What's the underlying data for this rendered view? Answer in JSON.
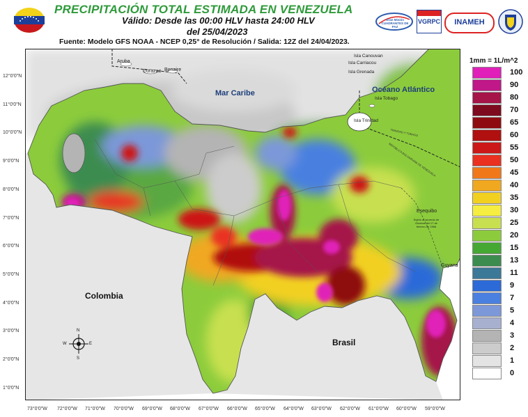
{
  "header": {
    "title": "PRECIPITACIÓN TOTAL ESTIMADA EN VENEZUELA",
    "validity": "Válido: Desde las 00:00 HLV hasta 24:00 HLV",
    "date": "del 25/04/2023",
    "source": "Fuente: Modelo GFS NOAA - NCEP 0,25° de Resolución / Salida: 12Z del 24/04/2023."
  },
  "logos": {
    "cuadrantes": "Gran Misión CUADRANTES DE PAZ",
    "vgrpc": "VGRPC",
    "inameh": "INAMEH"
  },
  "legend": {
    "title": "1mm = 1L/m^2",
    "items": [
      {
        "value": "100",
        "color": "#e020b8"
      },
      {
        "value": "90",
        "color": "#c01888"
      },
      {
        "value": "80",
        "color": "#a51548"
      },
      {
        "value": "70",
        "color": "#7e0a1e"
      },
      {
        "value": "65",
        "color": "#8e0c10"
      },
      {
        "value": "60",
        "color": "#b01010"
      },
      {
        "value": "55",
        "color": "#cc1818"
      },
      {
        "value": "50",
        "color": "#ea3020"
      },
      {
        "value": "45",
        "color": "#f07818"
      },
      {
        "value": "40",
        "color": "#f0a820"
      },
      {
        "value": "35",
        "color": "#f2d020"
      },
      {
        "value": "30",
        "color": "#f5ee40"
      },
      {
        "value": "25",
        "color": "#c8e050"
      },
      {
        "value": "20",
        "color": "#8ccc3c"
      },
      {
        "value": "15",
        "color": "#44a832"
      },
      {
        "value": "13",
        "color": "#3c8c50"
      },
      {
        "value": "11",
        "color": "#3c7898"
      },
      {
        "value": "9",
        "color": "#2c6ad8"
      },
      {
        "value": "7",
        "color": "#4a80e0"
      },
      {
        "value": "5",
        "color": "#7c98d8"
      },
      {
        "value": "4",
        "color": "#a8b0d0"
      },
      {
        "value": "3",
        "color": "#b4b4b4"
      },
      {
        "value": "2",
        "color": "#cccccc"
      },
      {
        "value": "1",
        "color": "#e4e4e4"
      },
      {
        "value": "0",
        "color": "#ffffff"
      }
    ]
  },
  "map_labels": {
    "aruba": "Aruba",
    "curazao": "Curazao",
    "bonaire": "Bonaire",
    "mar_caribe": "Mar Caribe",
    "canouan": "Isla Canouvan",
    "carriacou": "Isla Carriacou",
    "grenada": "Isla Grenada",
    "oceano": "Océano Atlántico",
    "tobago": "Isla Tobago",
    "trinidad": "Isla Trinidad",
    "esequibo": "Esequibo",
    "esequibo_note": "Sujeto al acuerdo de Ginebra del 17 de febrero de 1966",
    "guyana": "Guyana",
    "colombia": "Colombia",
    "brasil": "Brasil",
    "maritime": "TRINIDAD Y TOBAGO",
    "maritime2": "REPÚBLICA BOLIVARIANA DE VENEZUELA"
  },
  "compass": {
    "n": "N",
    "s": "S",
    "e": "E",
    "w": "W"
  },
  "axes": {
    "lat_ticks": [
      "12°0'0\"N",
      "11°0'0\"N",
      "10°0'0\"N",
      "9°0'0\"N",
      "8°0'0\"N",
      "7°0'0\"N",
      "6°0'0\"N",
      "5°0'0\"N",
      "4°0'0\"N",
      "3°0'0\"N",
      "2°0'0\"N",
      "1°0'0\"N"
    ],
    "lon_ticks": [
      "73°0'0\"W",
      "72°0'0\"W",
      "71°0'0\"W",
      "70°0'0\"W",
      "69°0'0\"W",
      "68°0'0\"W",
      "67°0'0\"W",
      "66°0'0\"W",
      "65°0'0\"W",
      "64°0'0\"W",
      "63°0'0\"W",
      "62°0'0\"W",
      "61°0'0\"W",
      "60°0'0\"W",
      "59°0'0\"W"
    ]
  }
}
